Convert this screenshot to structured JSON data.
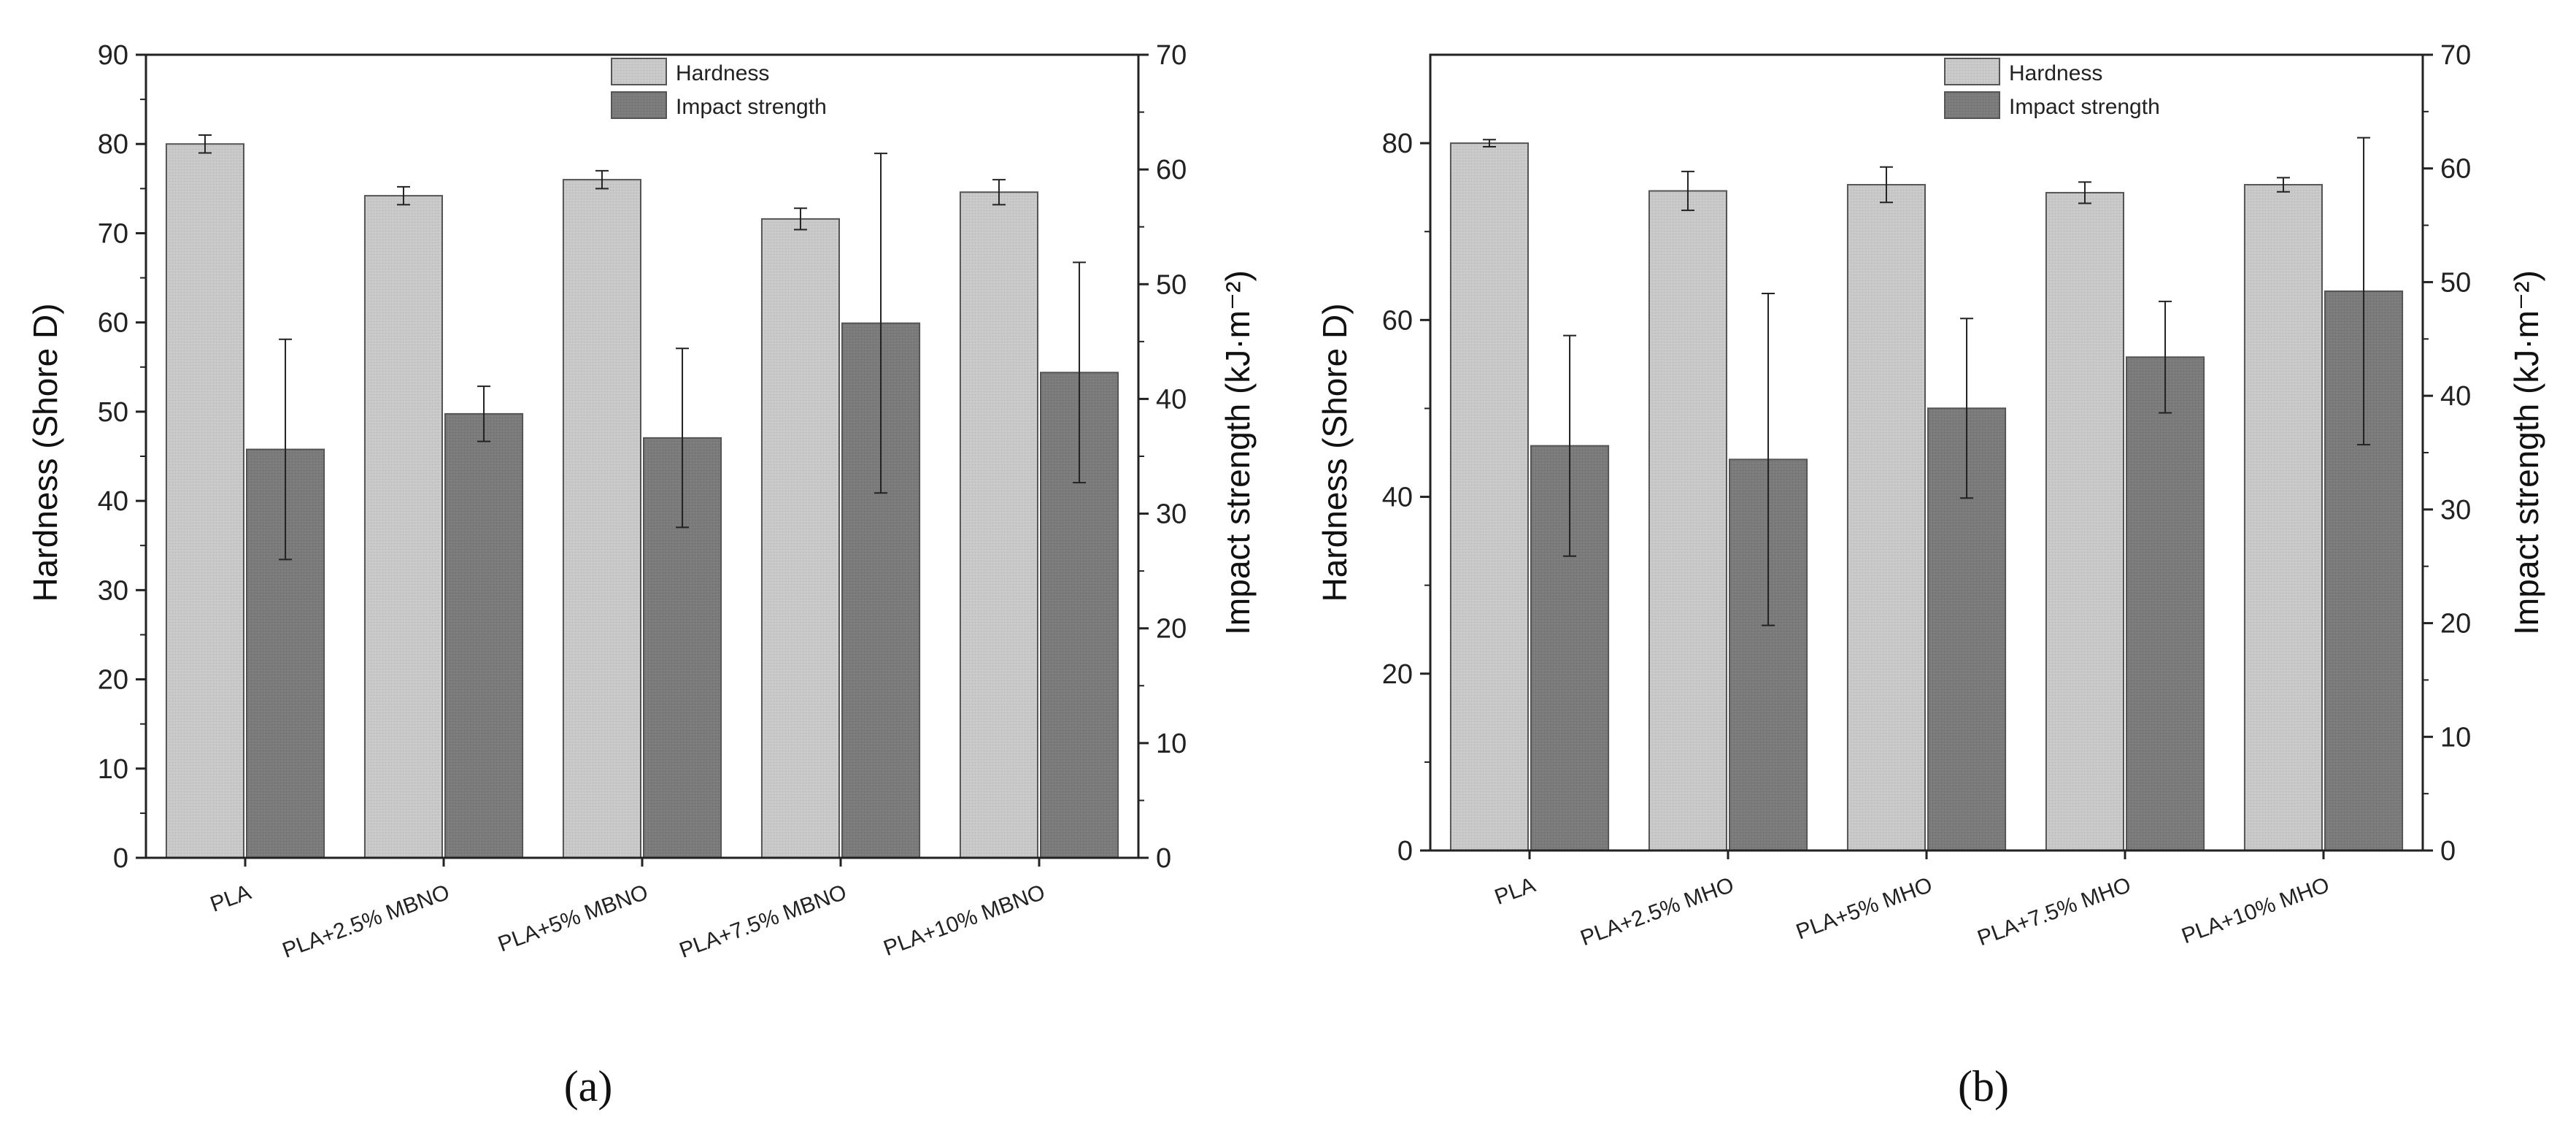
{
  "chart_data": [
    {
      "panel_label": "(a)",
      "type": "bar",
      "categories": [
        "PLA",
        "PLA+2.5% MBNO",
        "PLA+5% MBNO",
        "PLA+7.5% MBNO",
        "PLA+10% MBNO"
      ],
      "y_left": {
        "label": "Hardness (Shore D)",
        "lim": [
          0,
          90
        ],
        "ticks": [
          0,
          10,
          20,
          30,
          40,
          50,
          60,
          70,
          80,
          90
        ]
      },
      "y_right": {
        "label": "Impact strength (kJ·m⁻²)",
        "lim": [
          0,
          70
        ],
        "ticks": [
          0,
          10,
          20,
          30,
          40,
          50,
          60,
          70
        ]
      },
      "legend": {
        "position": "top-center",
        "entries": [
          "Hardness",
          "Impact strength"
        ]
      },
      "series": [
        {
          "name": "Hardness",
          "axis": "left",
          "color": "#c6c6c6",
          "values": [
            80.0,
            74.2,
            76.0,
            71.6,
            74.6
          ],
          "errors": [
            1.0,
            1.0,
            1.0,
            1.2,
            1.4
          ]
        },
        {
          "name": "Impact strength",
          "axis": "right",
          "color": "#7a7a7a",
          "values": [
            35.6,
            38.7,
            36.6,
            46.6,
            42.3
          ],
          "errors": [
            9.6,
            2.4,
            7.8,
            14.8,
            9.6
          ]
        }
      ]
    },
    {
      "panel_label": "(b)",
      "type": "bar",
      "categories": [
        "PLA",
        "PLA+2.5% MHO",
        "PLA+5% MHO",
        "PLA+7.5% MHO",
        "PLA+10% MHO"
      ],
      "y_left": {
        "label": "Hardness (Shore D)",
        "lim": [
          0,
          90
        ],
        "ticks": [
          0,
          20,
          40,
          60,
          80
        ]
      },
      "y_right": {
        "label": "Impact strength (kJ·m⁻²)",
        "lim": [
          0,
          70
        ],
        "ticks": [
          0,
          10,
          20,
          30,
          40,
          50,
          60,
          70
        ]
      },
      "legend": {
        "position": "top-center",
        "entries": [
          "Hardness",
          "Impact strength"
        ]
      },
      "series": [
        {
          "name": "Hardness",
          "axis": "left",
          "color": "#c6c6c6",
          "values": [
            80.0,
            74.6,
            75.3,
            74.4,
            75.3
          ],
          "errors": [
            0.4,
            2.2,
            2.0,
            1.2,
            0.8
          ]
        },
        {
          "name": "Impact strength",
          "axis": "right",
          "color": "#7a7a7a",
          "values": [
            35.6,
            34.4,
            38.9,
            43.4,
            49.2
          ],
          "errors": [
            9.7,
            14.6,
            7.9,
            4.9,
            13.5
          ]
        }
      ]
    }
  ]
}
